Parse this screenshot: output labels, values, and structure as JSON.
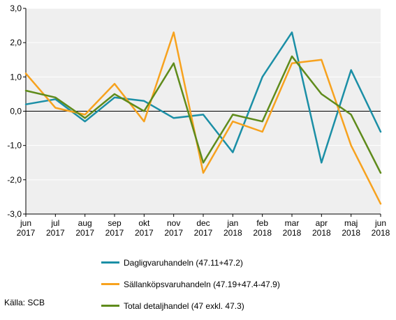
{
  "chart_data": {
    "type": "line",
    "title": "",
    "xlabel": "",
    "ylabel": "",
    "categories": [
      [
        "jun",
        "2017"
      ],
      [
        "jul",
        "2017"
      ],
      [
        "aug",
        "2017"
      ],
      [
        "sep",
        "2017"
      ],
      [
        "okt",
        "2017"
      ],
      [
        "nov",
        "2017"
      ],
      [
        "dec",
        "2017"
      ],
      [
        "jan",
        "2018"
      ],
      [
        "feb",
        "2018"
      ],
      [
        "mar",
        "2018"
      ],
      [
        "apr",
        "2018"
      ],
      [
        "maj",
        "2018"
      ],
      [
        "jun",
        "2018"
      ]
    ],
    "ylim": [
      -3.0,
      3.0
    ],
    "yticks": [
      "3,0",
      "2,0",
      "1,0",
      "0,0",
      "-1,0",
      "-2,0",
      "-3,0"
    ],
    "ytick_values": [
      3,
      2,
      1,
      0,
      -1,
      -2,
      -3
    ],
    "grid": true,
    "legend_position": "bottom",
    "series": [
      {
        "name": "Dagligvaruhandeln (47.11+47.2)",
        "color": "#1b8fa6",
        "values": [
          0.2,
          0.35,
          -0.3,
          0.4,
          0.3,
          -0.2,
          -0.1,
          -1.2,
          1.0,
          2.3,
          -1.5,
          1.2,
          -0.6
        ]
      },
      {
        "name": "Sällanköpsvaruhandeln (47.19+47.4-47.9)",
        "color": "#f7a21e",
        "values": [
          1.1,
          0.1,
          -0.1,
          0.8,
          -0.3,
          2.3,
          -1.8,
          -0.3,
          -0.6,
          1.4,
          1.5,
          -1.0,
          -2.7
        ]
      },
      {
        "name": "Total detaljhandel (47 exkl. 47.3)",
        "color": "#5f8b1b",
        "values": [
          0.6,
          0.4,
          -0.2,
          0.5,
          0.0,
          1.4,
          -1.5,
          -0.1,
          -0.3,
          1.6,
          0.5,
          -0.1,
          -1.8
        ]
      }
    ]
  },
  "source_label": "Källa: SCB"
}
